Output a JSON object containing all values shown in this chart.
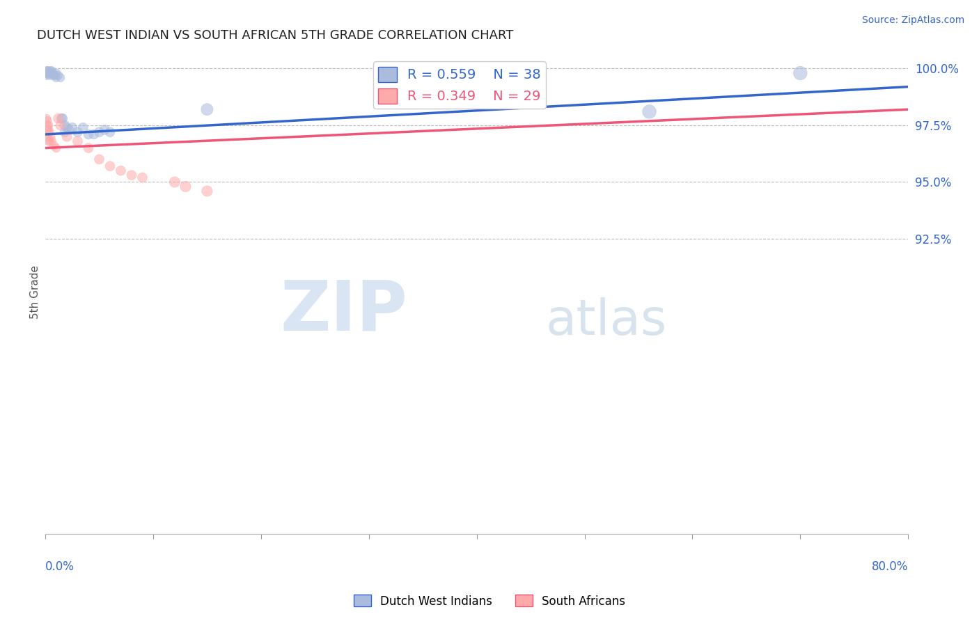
{
  "title": "DUTCH WEST INDIAN VS SOUTH AFRICAN 5TH GRADE CORRELATION CHART",
  "source": "Source: ZipAtlas.com",
  "ylabel": "5th Grade",
  "xlim": [
    0.0,
    0.8
  ],
  "ylim": [
    0.795,
    1.008
  ],
  "blue_r": 0.559,
  "blue_n": 38,
  "pink_r": 0.349,
  "pink_n": 29,
  "blue_color": "#AABBDD",
  "pink_color": "#FFAAAA",
  "blue_line_color": "#3366CC",
  "pink_line_color": "#EE5577",
  "watermark_zip": "ZIP",
  "watermark_atlas": "atlas",
  "ytick_vals": [
    1.0,
    0.975,
    0.95,
    0.925
  ],
  "ytick_labels": [
    "100.0%",
    "97.5%",
    "95.0%",
    "92.5%"
  ],
  "blue_scatter": [
    [
      0.001,
      0.999
    ],
    [
      0.001,
      0.998
    ],
    [
      0.001,
      0.997
    ],
    [
      0.002,
      0.999
    ],
    [
      0.002,
      0.998
    ],
    [
      0.003,
      0.999
    ],
    [
      0.003,
      0.998
    ],
    [
      0.004,
      0.998
    ],
    [
      0.004,
      0.997
    ],
    [
      0.005,
      0.998
    ],
    [
      0.005,
      0.999
    ],
    [
      0.006,
      0.999
    ],
    [
      0.006,
      0.998
    ],
    [
      0.007,
      0.998
    ],
    [
      0.007,
      0.997
    ],
    [
      0.008,
      0.997
    ],
    [
      0.009,
      0.997
    ],
    [
      0.01,
      0.998
    ],
    [
      0.01,
      0.996
    ],
    [
      0.012,
      0.997
    ],
    [
      0.014,
      0.996
    ],
    [
      0.015,
      0.978
    ],
    [
      0.016,
      0.978
    ],
    [
      0.018,
      0.975
    ],
    [
      0.018,
      0.972
    ],
    [
      0.02,
      0.974
    ],
    [
      0.022,
      0.973
    ],
    [
      0.025,
      0.974
    ],
    [
      0.03,
      0.972
    ],
    [
      0.035,
      0.974
    ],
    [
      0.04,
      0.971
    ],
    [
      0.045,
      0.971
    ],
    [
      0.05,
      0.972
    ],
    [
      0.055,
      0.973
    ],
    [
      0.06,
      0.972
    ],
    [
      0.15,
      0.982
    ],
    [
      0.56,
      0.981
    ],
    [
      0.7,
      0.998
    ]
  ],
  "blue_sizes": [
    80,
    80,
    80,
    80,
    80,
    80,
    80,
    80,
    80,
    80,
    80,
    80,
    80,
    80,
    80,
    80,
    80,
    80,
    80,
    80,
    80,
    100,
    100,
    100,
    100,
    100,
    100,
    100,
    100,
    100,
    100,
    100,
    100,
    100,
    100,
    150,
    200,
    200
  ],
  "pink_scatter": [
    [
      0.001,
      0.978
    ],
    [
      0.001,
      0.975
    ],
    [
      0.001,
      0.972
    ],
    [
      0.002,
      0.977
    ],
    [
      0.002,
      0.975
    ],
    [
      0.002,
      0.973
    ],
    [
      0.002,
      0.97
    ],
    [
      0.003,
      0.975
    ],
    [
      0.003,
      0.973
    ],
    [
      0.003,
      0.968
    ],
    [
      0.004,
      0.972
    ],
    [
      0.004,
      0.968
    ],
    [
      0.005,
      0.97
    ],
    [
      0.006,
      0.968
    ],
    [
      0.008,
      0.966
    ],
    [
      0.01,
      0.965
    ],
    [
      0.012,
      0.978
    ],
    [
      0.014,
      0.975
    ],
    [
      0.02,
      0.97
    ],
    [
      0.03,
      0.968
    ],
    [
      0.04,
      0.965
    ],
    [
      0.05,
      0.96
    ],
    [
      0.06,
      0.957
    ],
    [
      0.07,
      0.955
    ],
    [
      0.08,
      0.953
    ],
    [
      0.09,
      0.952
    ],
    [
      0.12,
      0.95
    ],
    [
      0.13,
      0.948
    ],
    [
      0.15,
      0.946
    ]
  ],
  "pink_sizes": [
    80,
    80,
    80,
    80,
    80,
    80,
    80,
    80,
    80,
    80,
    80,
    80,
    80,
    80,
    80,
    80,
    100,
    100,
    100,
    100,
    100,
    100,
    100,
    100,
    100,
    100,
    120,
    120,
    120
  ]
}
